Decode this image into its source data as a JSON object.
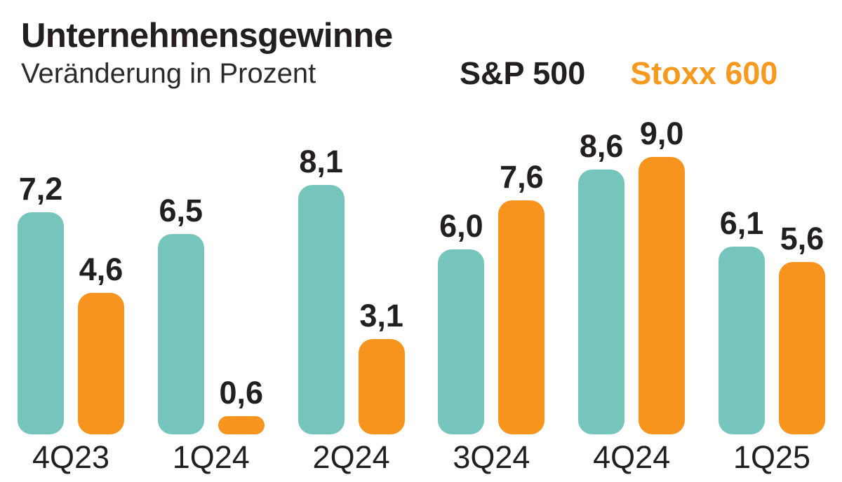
{
  "header": {
    "title": "Unternehmensgewinne",
    "subtitle": "Veränderung in Prozent"
  },
  "legend": {
    "items": [
      {
        "label": "S&P 500",
        "color": "#231f20"
      },
      {
        "label": "Stoxx 600",
        "color": "#f7981f"
      }
    ]
  },
  "colors": {
    "sp500_bar": "#75c5bc",
    "stoxx600_bar": "#f6941d",
    "text_dark": "#231f20",
    "background": "#ffffff"
  },
  "chart_data": {
    "type": "bar",
    "title": "Unternehmensgewinne",
    "subtitle": "Veränderung in Prozent",
    "categories": [
      "4Q23",
      "1Q24",
      "2Q24",
      "3Q24",
      "4Q24",
      "1Q25"
    ],
    "series": [
      {
        "name": "S&P 500",
        "color": "#75c5bc",
        "values": [
          7.2,
          6.5,
          8.1,
          6.0,
          8.6,
          6.1
        ]
      },
      {
        "name": "Stoxx 600",
        "color": "#f6941d",
        "values": [
          4.6,
          0.6,
          3.1,
          7.6,
          9.0,
          5.6
        ]
      }
    ],
    "value_labels": "above-bars",
    "decimal_separator": ",",
    "unit": "percent",
    "ylim": [
      0,
      9.5
    ],
    "grid": false,
    "axes_hidden": true,
    "legend_position": "top-right"
  }
}
